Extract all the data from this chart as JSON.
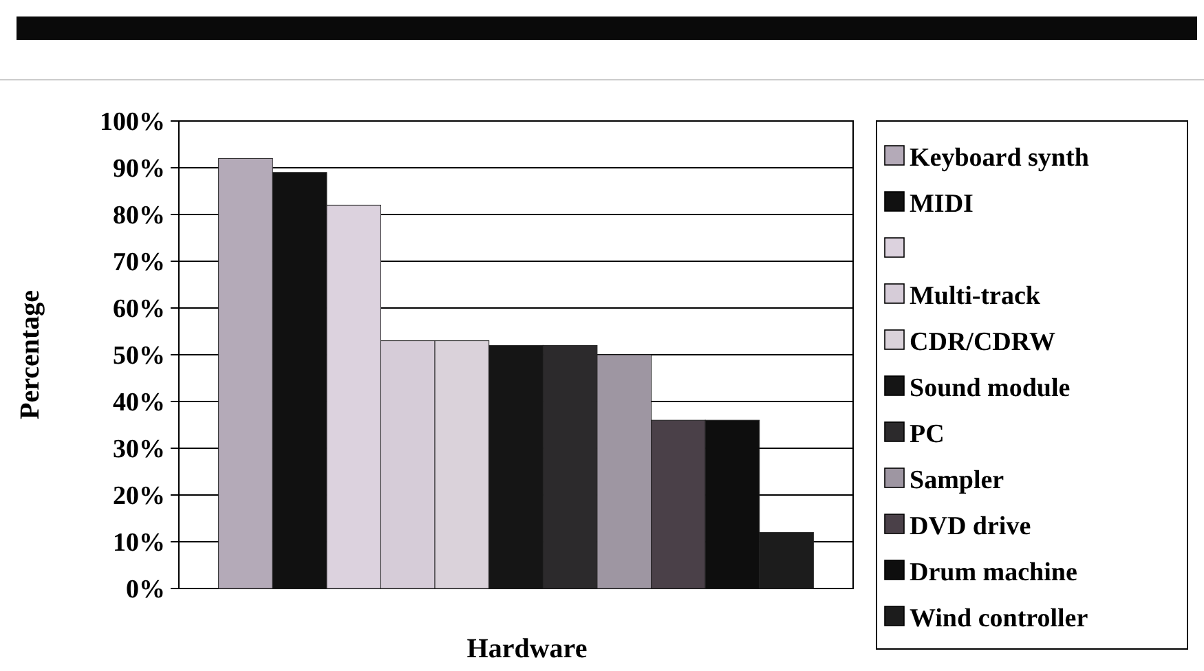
{
  "chart_data": {
    "type": "bar",
    "xlabel": "Hardware",
    "ylabel": "Percentage",
    "categories": [
      null
    ],
    "series": [
      {
        "name": "Keyboard synth",
        "color": "#b4aab8",
        "values": [
          92
        ]
      },
      {
        "name": "MIDI",
        "color": "#111111",
        "values": [
          89
        ]
      },
      {
        "color": "#dcd2de",
        "values": [
          82
        ]
      },
      {
        "name": "Multi-track",
        "color": "#d6ccd8",
        "values": [
          53
        ]
      },
      {
        "name": "CDR/CDRW",
        "color": "#dad2da",
        "values": [
          53
        ]
      },
      {
        "name": "Sound module",
        "color": "#151515",
        "values": [
          52
        ]
      },
      {
        "name": "PC",
        "color": "#2c2a2c",
        "values": [
          52
        ]
      },
      {
        "name": "Sampler",
        "color": "#9e96a2",
        "values": [
          50
        ]
      },
      {
        "name": "DVD drive",
        "color": "#4a4048",
        "values": [
          36
        ]
      },
      {
        "name": "Drum machine",
        "color": "#0e0e0e",
        "values": [
          36
        ]
      },
      {
        "name": "Wind controller",
        "color": "#1c1c1c",
        "values": [
          12
        ]
      }
    ],
    "ylim": [
      0,
      100
    ],
    "yticks": [
      {
        "value": 0,
        "label": "0%"
      },
      {
        "value": 10,
        "label": "10%"
      },
      {
        "value": 20,
        "label": "20%"
      },
      {
        "value": 30,
        "label": "30%"
      },
      {
        "value": 40,
        "label": "40%"
      },
      {
        "value": 50,
        "label": "50%"
      },
      {
        "value": 60,
        "label": "60%"
      },
      {
        "value": 70,
        "label": "70%"
      },
      {
        "value": 80,
        "label": "80%"
      },
      {
        "value": 90,
        "label": "90%"
      },
      {
        "value": 100,
        "label": "100%"
      }
    ],
    "grid": "y",
    "legend": "right"
  }
}
